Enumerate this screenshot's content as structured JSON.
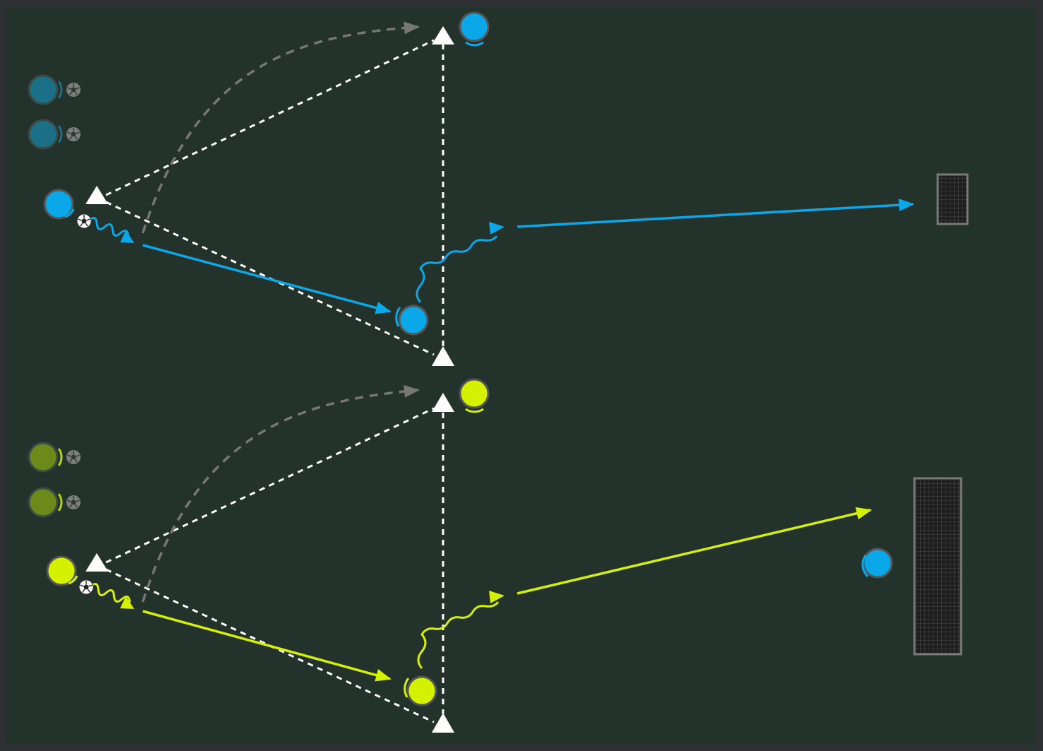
{
  "diagram": {
    "colors": {
      "border": "#2d3133",
      "pitch": "#23322b",
      "team_blue": "#0aa8e8",
      "team_blue_waiting": "#1b6f86",
      "team_yellow": "#d4f200",
      "team_yellow_waiting": "#6b8a1a",
      "keeper": "#0aa8e8",
      "run_path": "#777777",
      "passing_line": "#ffffff",
      "cone": "#ffffff",
      "goal_frame": "#7a7a7a"
    },
    "icons": [
      "cone-icon",
      "player-icon",
      "ball-icon",
      "goal-icon",
      "arrow-icon"
    ],
    "drills": [
      {
        "id": "blue",
        "team": "team_blue",
        "waiting_players": 2,
        "players": 3
      },
      {
        "id": "yellow",
        "team": "team_yellow",
        "waiting_players": 2,
        "players": 3
      }
    ],
    "goalkeeper": {
      "team": "keeper"
    },
    "goals": 2,
    "cones": 6
  }
}
